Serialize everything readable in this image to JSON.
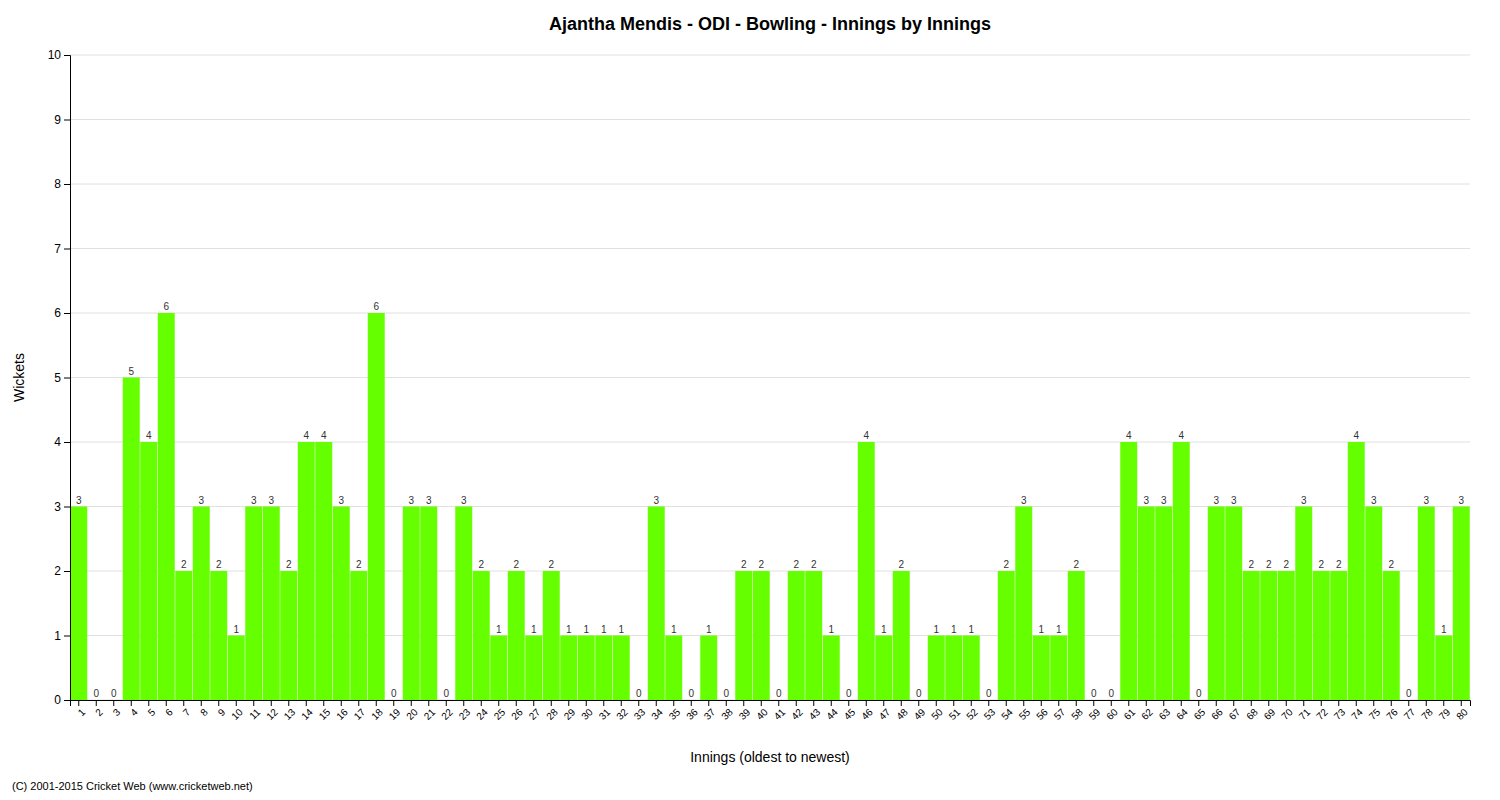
{
  "chart_data": {
    "type": "bar",
    "title": "Ajantha Mendis - ODI - Bowling - Innings by Innings",
    "x_label": "Innings (oldest to newest)",
    "y_label": "Wickets",
    "footnote": "(C) 2001-2015 Cricket Web (www.cricketweb.net)",
    "categories": [
      1,
      2,
      3,
      4,
      5,
      6,
      7,
      8,
      9,
      10,
      11,
      12,
      13,
      14,
      15,
      16,
      17,
      18,
      19,
      20,
      21,
      22,
      23,
      24,
      25,
      26,
      27,
      28,
      29,
      30,
      31,
      32,
      33,
      34,
      35,
      36,
      37,
      38,
      39,
      40,
      41,
      42,
      43,
      44,
      45,
      46,
      47,
      48,
      49,
      50,
      51,
      52,
      53,
      54,
      55,
      56,
      57,
      58,
      59,
      60,
      61,
      62,
      63,
      64,
      65,
      66,
      67,
      68,
      69,
      70,
      71,
      72,
      73,
      74,
      75,
      76,
      77,
      78,
      79,
      80
    ],
    "values": [
      3,
      0,
      0,
      5,
      4,
      6,
      2,
      3,
      2,
      1,
      3,
      3,
      2,
      4,
      4,
      3,
      2,
      6,
      0,
      3,
      3,
      0,
      3,
      2,
      1,
      2,
      1,
      2,
      1,
      1,
      1,
      1,
      0,
      3,
      1,
      0,
      1,
      0,
      2,
      2,
      0,
      2,
      2,
      1,
      0,
      4,
      1,
      2,
      0,
      1,
      1,
      1,
      0,
      2,
      3,
      1,
      1,
      2,
      0,
      0,
      4,
      3,
      3,
      4,
      0,
      3,
      3,
      2,
      2,
      2,
      3,
      2,
      2,
      4,
      3,
      2,
      0,
      3,
      1,
      3
    ],
    "color": "#66ff00",
    "ylim": [
      0,
      10
    ],
    "yticks": [
      0,
      1,
      2,
      3,
      4,
      5,
      6,
      7,
      8,
      9,
      10
    ],
    "grid": true,
    "data_labels": true
  }
}
